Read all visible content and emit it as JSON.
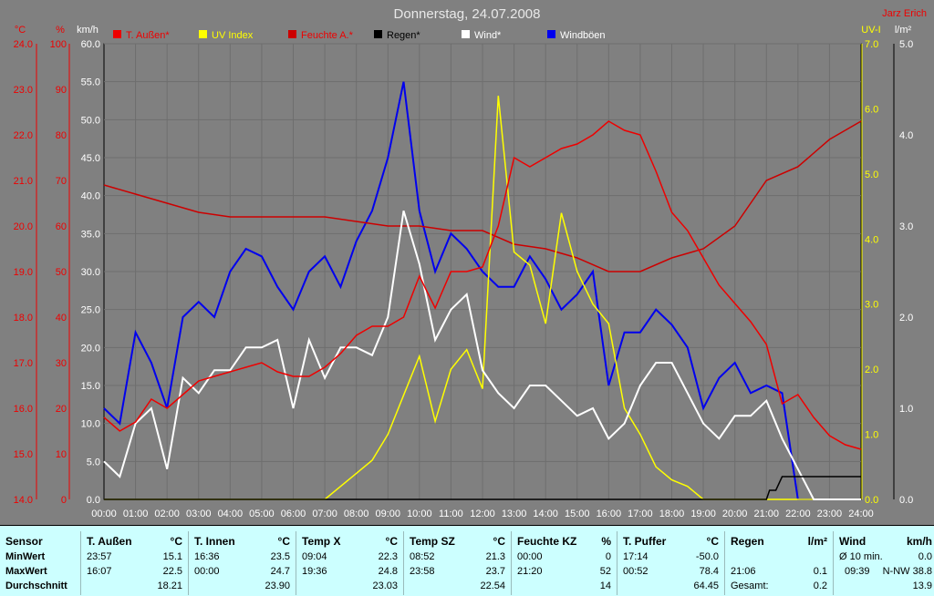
{
  "header": {
    "title": "Donnerstag, 24.07.2008",
    "author": "Jarz Erich"
  },
  "colors": {
    "temp_aussen": "#ee0000",
    "uv": "#ffff00",
    "feuchte": "#cc0000",
    "regen": "#000000",
    "wind": "#ffffff",
    "windboeen": "#0000ee",
    "background": "#808080",
    "table": "#ccffff"
  },
  "legend": [
    "T. Außen*",
    "UV Index",
    "Feuchte A.*",
    "Regen*",
    "Wind*",
    "Windböen"
  ],
  "axis_units": {
    "temp": "°C",
    "hum": "%",
    "wind": "km/h",
    "uv": "UV-I",
    "rain": "l/m²"
  },
  "chart_data": {
    "type": "line",
    "title": "Donnerstag, 24.07.2008",
    "x_ticks": [
      "00:00",
      "01:00",
      "02:00",
      "03:00",
      "04:00",
      "05:00",
      "06:00",
      "07:00",
      "08:00",
      "09:00",
      "10:00",
      "11:00",
      "12:00",
      "13:00",
      "14:00",
      "15:00",
      "16:00",
      "17:00",
      "18:00",
      "19:00",
      "20:00",
      "21:00",
      "22:00",
      "23:00",
      "24:00"
    ],
    "axes": {
      "temp": {
        "ticks": [
          "24.0",
          "23.0",
          "22.0",
          "21.0",
          "20.0",
          "19.0",
          "18.0",
          "17.0",
          "16.0",
          "15.0",
          "14.0"
        ],
        "range": [
          14,
          24
        ]
      },
      "hum": {
        "ticks": [
          "100",
          "90",
          "80",
          "70",
          "60",
          "50",
          "40",
          "30",
          "20",
          "10",
          "0"
        ],
        "range": [
          0,
          100
        ]
      },
      "wind": {
        "ticks": [
          "60.0",
          "55.0",
          "50.0",
          "45.0",
          "40.0",
          "35.0",
          "30.0",
          "25.0",
          "20.0",
          "15.0",
          "10.0",
          "5.0",
          "0.0"
        ],
        "range": [
          0,
          60
        ]
      },
      "uv": {
        "ticks": [
          "7.0",
          "6.0",
          "5.0",
          "4.0",
          "3.0",
          "2.0",
          "1.0",
          "0.0"
        ],
        "range": [
          0,
          7
        ]
      },
      "rain": {
        "ticks": [
          "5.0",
          "4.0",
          "3.0",
          "2.0",
          "1.0",
          "0.0"
        ],
        "range": [
          0,
          5
        ]
      }
    },
    "series": [
      {
        "name": "T. Außen*",
        "axis": "temp",
        "x": [
          0,
          0.5,
          1,
          1.5,
          2,
          2.5,
          3,
          3.5,
          4,
          4.5,
          5,
          5.5,
          6,
          6.5,
          7,
          7.5,
          8,
          8.5,
          9,
          9.5,
          10,
          10.5,
          11,
          11.5,
          12,
          12.5,
          13,
          13.5,
          14,
          14.5,
          15,
          15.5,
          16,
          16.5,
          17,
          17.5,
          18,
          18.5,
          19,
          19.5,
          20,
          20.5,
          21,
          21.5,
          22,
          22.5,
          23,
          23.5,
          24
        ],
        "y": [
          15.8,
          15.5,
          15.7,
          16.2,
          16.0,
          16.3,
          16.6,
          16.7,
          16.8,
          16.9,
          17.0,
          16.8,
          16.7,
          16.7,
          16.9,
          17.2,
          17.6,
          17.8,
          17.8,
          18.0,
          18.9,
          18.2,
          19.0,
          19.0,
          19.1,
          20.0,
          21.5,
          21.3,
          21.5,
          21.7,
          21.8,
          22.0,
          22.3,
          22.1,
          22.0,
          21.2,
          20.3,
          19.9,
          19.3,
          18.7,
          18.3,
          17.9,
          17.4,
          16.1,
          16.3,
          15.8,
          15.4,
          15.2,
          15.1
        ]
      },
      {
        "name": "UV Index",
        "axis": "uv",
        "x": [
          0,
          7,
          7.5,
          8,
          8.5,
          9,
          9.5,
          10,
          10.5,
          11,
          11.5,
          12,
          12.5,
          13,
          13.5,
          14,
          14.5,
          15,
          15.5,
          16,
          16.5,
          17,
          17.5,
          18,
          18.5,
          19,
          24
        ],
        "y": [
          0,
          0,
          0.2,
          0.4,
          0.6,
          1.0,
          1.6,
          2.2,
          1.2,
          2.0,
          2.3,
          1.7,
          6.2,
          3.8,
          3.6,
          2.7,
          4.4,
          3.5,
          3.0,
          2.7,
          1.4,
          1.0,
          0.5,
          0.3,
          0.2,
          0.0,
          0.0
        ]
      },
      {
        "name": "Feuchte A.*",
        "axis": "hum",
        "x": [
          0,
          1,
          2,
          3,
          4,
          5,
          6,
          7,
          8,
          9,
          10,
          11,
          12,
          13,
          14,
          15,
          16,
          17,
          18,
          19,
          20,
          21,
          22,
          23,
          24
        ],
        "y": [
          69,
          67,
          65,
          63,
          62,
          62,
          62,
          62,
          61,
          60,
          60,
          59,
          59,
          56,
          55,
          53,
          50,
          50,
          53,
          55,
          60,
          70,
          73,
          79,
          83
        ]
      },
      {
        "name": "Regen*",
        "axis": "rain",
        "x": [
          0,
          21.0,
          21.1,
          21.3,
          21.5,
          22,
          23,
          24
        ],
        "y": [
          0,
          0,
          0.1,
          0.1,
          0.25,
          0.25,
          0.25,
          0.25
        ]
      },
      {
        "name": "Wind*",
        "axis": "wind",
        "x": [
          0,
          0.5,
          1,
          1.5,
          2,
          2.5,
          3,
          3.5,
          4,
          4.5,
          5,
          5.5,
          6,
          6.5,
          7,
          7.5,
          8,
          8.5,
          9,
          9.5,
          10,
          10.5,
          11,
          11.5,
          12,
          12.5,
          13,
          13.5,
          14,
          14.5,
          15,
          15.5,
          16,
          16.5,
          17,
          17.5,
          18,
          18.5,
          19,
          19.5,
          20,
          20.5,
          21,
          21.5,
          22,
          22.5,
          23,
          24
        ],
        "y": [
          5,
          3,
          10,
          12,
          4,
          16,
          14,
          17,
          17,
          20,
          20,
          21,
          12,
          21,
          16,
          20,
          20,
          19,
          24,
          38,
          31,
          21,
          25,
          27,
          17,
          14,
          12,
          15,
          15,
          13,
          11,
          12,
          8,
          10,
          15,
          18,
          18,
          14,
          10,
          8,
          11,
          11,
          13,
          8,
          4,
          0,
          0,
          0
        ]
      },
      {
        "name": "Windböen",
        "axis": "wind",
        "x": [
          0,
          0.5,
          1,
          1.5,
          2,
          2.5,
          3,
          3.5,
          4,
          4.5,
          5,
          5.5,
          6,
          6.5,
          7,
          7.5,
          8,
          8.5,
          9,
          9.5,
          10,
          10.5,
          11,
          11.5,
          12,
          12.5,
          13,
          13.5,
          14,
          14.5,
          15,
          15.5,
          16,
          16.5,
          17,
          17.5,
          18,
          18.5,
          19,
          19.5,
          20,
          20.5,
          21,
          21.5,
          22,
          24
        ],
        "y": [
          12,
          10,
          22,
          18,
          12,
          24,
          26,
          24,
          30,
          33,
          32,
          28,
          25,
          30,
          32,
          28,
          34,
          38,
          45,
          55,
          38,
          30,
          35,
          33,
          30,
          28,
          28,
          32,
          29,
          25,
          27,
          30,
          15,
          22,
          22,
          25,
          23,
          20,
          12,
          16,
          18,
          14,
          15,
          14,
          0,
          0
        ]
      }
    ]
  },
  "table": {
    "sensor": {
      "header": "Sensor",
      "rows": [
        "MinWert",
        "MaxWert",
        "Durchschnitt"
      ]
    },
    "columns": [
      {
        "header": "T. Außen",
        "unit": "°C",
        "min_time": "23:57",
        "min": "15.1",
        "max_time": "16:07",
        "max": "22.5",
        "avg": "18.21"
      },
      {
        "header": "T. Innen",
        "unit": "°C",
        "min_time": "16:36",
        "min": "23.5",
        "max_time": "00:00",
        "max": "24.7",
        "avg": "23.90"
      },
      {
        "header": "Temp X",
        "unit": "°C",
        "min_time": "09:04",
        "min": "22.3",
        "max_time": "19:36",
        "max": "24.8",
        "avg": "23.03"
      },
      {
        "header": "Temp SZ",
        "unit": "°C",
        "min_time": "08:52",
        "min": "21.3",
        "max_time": "23:58",
        "max": "23.7",
        "avg": "22.54"
      },
      {
        "header": "Feuchte KZ",
        "unit": "%",
        "min_time": "00:00",
        "min": "0",
        "max_time": "21:20",
        "max": "52",
        "avg": "14"
      },
      {
        "header": "T. Puffer",
        "unit": "°C",
        "min_time": "17:14",
        "min": "-50.0",
        "max_time": "00:52",
        "max": "78.4",
        "avg": "64.45"
      }
    ],
    "regen": {
      "header": "Regen",
      "unit": "l/m²",
      "r1_label": "",
      "r1_val": "",
      "r2_label": "21:06",
      "r2_val": "0.1",
      "r3_label": "Gesamt:",
      "r3_val": "0.2"
    },
    "wind": {
      "header": "Wind",
      "unit": "km/h",
      "r1_label": "Ø 10 min.",
      "r1_val": "0.0",
      "r2_label": "09:39",
      "r2_val": "N-NW 38.8",
      "r3_label": "",
      "r3_val": "13.9"
    }
  }
}
